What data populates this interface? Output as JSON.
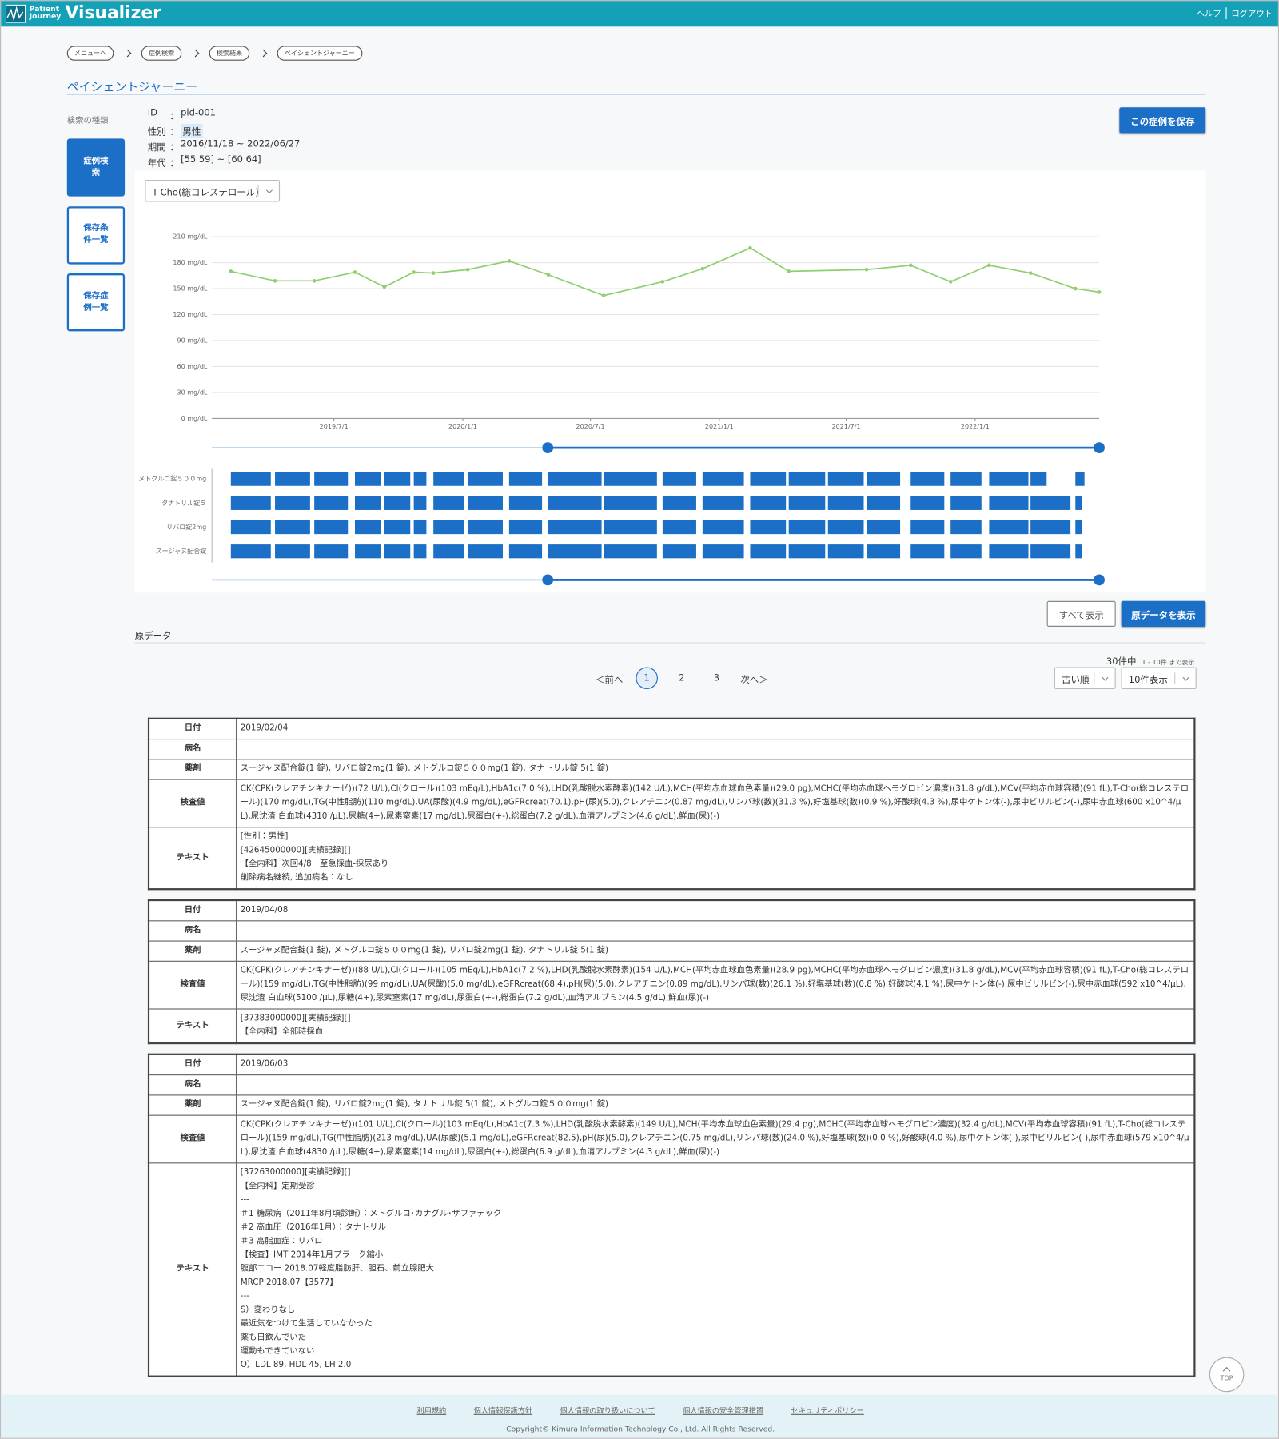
{
  "header": {
    "logo_line1": "Patient",
    "logo_line2": "Journey",
    "logo_main": "Visualizer",
    "links": [
      "ヘルプ",
      "ログアウト"
    ]
  },
  "breadcrumbs": [
    "メニューへ",
    "症例検索",
    "検索結果",
    "ペイシェントジャーニー"
  ],
  "page_title": "ペイシェントジャーニー",
  "sidebar": {
    "label": "検索の種類",
    "buttons": [
      "症例検索",
      "保存条件一覧",
      "保存症例一覧"
    ]
  },
  "patient": {
    "separator": "：",
    "fields": [
      {
        "label": "ID",
        "value": "pid-001"
      },
      {
        "label": "性別",
        "value": "男性"
      },
      {
        "label": "期間",
        "value": "2016/11/18 ~ 2022/06/27"
      },
      {
        "label": "年代",
        "value": "[55 59] ~ [60 64]"
      }
    ]
  },
  "save_button": "この症例を保存",
  "test_select": "T-Cho(総コレステロール)",
  "chart_data": [
    {
      "type": "line",
      "color": "#8fcf6f",
      "grid": true,
      "x": [
        "2019/02/04",
        "2019/04/08",
        "2019/06/03",
        "2019/07/31",
        "2019/09/11",
        "2019/10/23",
        "2019/11/20",
        "2020/01/08",
        "2020/03/07",
        "2020/05/02",
        "2020/07/20",
        "2020/10/12",
        "2020/12/08",
        "2021/02/14",
        "2021/04/10",
        "2021/07/30",
        "2021/10/01",
        "2021/11/27",
        "2022/01/21",
        "2022/03/21",
        "2022/05/24",
        "2022/06/27"
      ],
      "values": [
        170,
        159,
        159,
        169,
        152,
        169,
        168,
        172,
        182,
        166,
        142,
        158,
        173,
        197,
        170,
        172,
        177,
        158,
        177,
        168,
        150,
        146
      ],
      "xlim": [
        "2019/01/08",
        "2022/06/27"
      ],
      "xticks": [
        "2019/7/1",
        "2020/1/1",
        "2020/7/1",
        "2021/1/1",
        "2021/7/1",
        "2022/1/1"
      ],
      "ylim": [
        0,
        210
      ],
      "yticks": [
        {
          "value": 0,
          "label": "0 mg/dL"
        },
        {
          "value": 30,
          "label": "30 mg/dL"
        },
        {
          "value": 60,
          "label": "60 mg/dL"
        },
        {
          "value": 90,
          "label": "90 mg/dL"
        },
        {
          "value": 120,
          "label": "120 mg/dL"
        },
        {
          "value": 150,
          "label": "150 mg/dL"
        },
        {
          "value": 180,
          "label": "180 mg/dL"
        },
        {
          "value": 210,
          "label": "210 mg/dL"
        }
      ]
    },
    {
      "type": "gantt",
      "xlim": [
        "2019/01/08",
        "2022/06/27"
      ],
      "x": [
        "2019/02/04",
        "2019/04/08",
        "2019/06/03",
        "2019/07/31",
        "2019/09/11",
        "2019/10/23",
        "2019/11/20",
        "2020/01/08",
        "2020/03/07",
        "2020/05/02",
        "2020/07/20",
        "2020/10/12",
        "2020/12/08",
        "2021/02/14",
        "2021/04/10",
        "2021/06/05",
        "2021/07/30",
        "2021/10/01",
        "2021/11/27",
        "2022/01/21",
        "2022/03/21",
        "2022/05/24"
      ],
      "series": [
        {
          "name": "メトグルコ錠５００mg",
          "color": "#1c6fc6",
          "values": [
            57,
            50,
            48,
            37,
            37,
            18,
            44,
            50,
            47,
            76,
            76,
            48,
            59,
            51,
            52,
            51,
            48,
            48,
            44,
            56,
            23,
            13
          ]
        },
        {
          "name": "タナトリル錠５",
          "color": "#1c6fc6",
          "values": [
            57,
            50,
            48,
            37,
            37,
            18,
            44,
            50,
            47,
            76,
            76,
            48,
            59,
            51,
            52,
            51,
            48,
            48,
            44,
            56,
            57,
            10
          ]
        },
        {
          "name": "リバロ錠2mg",
          "color": "#1c6fc6",
          "values": [
            57,
            50,
            48,
            37,
            37,
            18,
            44,
            50,
            47,
            76,
            76,
            48,
            59,
            51,
            52,
            51,
            48,
            48,
            44,
            56,
            57,
            10
          ]
        },
        {
          "name": "スージャヌ配合錠",
          "color": "#1c6fc6",
          "values": [
            57,
            50,
            48,
            37,
            37,
            18,
            44,
            50,
            47,
            76,
            76,
            48,
            59,
            51,
            52,
            51,
            48,
            48,
            44,
            56,
            57,
            10
          ]
        }
      ]
    }
  ],
  "buttons": {
    "show_all": "すべて表示",
    "show_raw": "原データを表示"
  },
  "raw_data": {
    "title": "原データ",
    "count": "30件中",
    "range": "1 - 10件 まで表示",
    "prev": "＜前へ",
    "pages": [
      1,
      2,
      3
    ],
    "next": "次へ＞",
    "sort": "古い順",
    "per_page": "10件表示",
    "field_labels": {
      "date": "日付",
      "disease": "病名",
      "drugs": "薬剤",
      "labs": "検査値",
      "text": "テキスト"
    },
    "records": [
      {
        "date": "2019/02/04",
        "drugs": "スージャヌ配合錠(1 錠), リバロ錠2mg(1 錠), メトグルコ錠５００mg(1 錠), タナトリル錠 5(1 錠)",
        "labs": "CK(CPK(クレアチンキナーゼ))(72 U/L),Cl(クロール)(103 mEq/L),HbA1c(7.0 %),LHD(乳酸脱水素酵素)(142 U/L),MCH(平均赤血球血色素量)(29.0 pg),MCHC(平均赤血球ヘモグロビン濃度)(31.8 g/dL),MCV(平均赤血球容積)(91 fL),T-Cho(総コレステロール)(170 mg/dL),TG(中性脂肪)(110 mg/dL),UA(尿酸)(4.9 mg/dL),eGFRcreat(70.1),pH(尿)(5.0),クレアチニン(0.87 mg/dL),リンパ球(数)(31.3 %),好塩基球(数)(0.9 %),好酸球(4.3 %),尿中ケトン体(-),尿中ビリルビン(-),尿中赤血球(600 x10^4/μL),尿沈渣 白血球(4310 /μL),尿糖(4+),尿素窒素(17 mg/dL),尿蛋白(+-),総蛋白(7.2 g/dL),血清アルブミン(4.6 g/dL),鮮血(尿)(-)",
        "text": [
          "[性別：男性]",
          "[42645000000][実績記録][]",
          "【全内科】次回4/8　至急採血-採尿あり",
          "削除病名継続, 追加病名：なし"
        ]
      },
      {
        "date": "2019/04/08",
        "drugs": "スージャヌ配合錠(1 錠), メトグルコ錠５００mg(1 錠), リバロ錠2mg(1 錠), タナトリル錠 5(1 錠)",
        "labs": "CK(CPK(クレアチンキナーゼ))(88 U/L),Cl(クロール)(105 mEq/L),HbA1c(7.2 %),LHD(乳酸脱水素酵素)(154 U/L),MCH(平均赤血球血色素量)(28.9 pg),MCHC(平均赤血球ヘモグロビン濃度)(31.8 g/dL),MCV(平均赤血球容積)(91 fL),T-Cho(総コレステロール)(159 mg/dL),TG(中性脂肪)(99 mg/dL),UA(尿酸)(5.0 mg/dL),eGFRcreat(68.4),pH(尿)(5.0),クレアチニン(0.89 mg/dL),リンパ球(数)(26.1 %),好塩基球(数)(0.8 %),好酸球(4.1 %),尿中ケトン体(-),尿中ビリルビン(-),尿中赤血球(592 x10^4/μL),尿沈渣 白血球(5100 /μL),尿糖(4+),尿素窒素(17 mg/dL),尿蛋白(+-),総蛋白(7.2 g/dL),血清アルブミン(4.5 g/dL),鮮血(尿)(-)",
        "text": [
          "[37383000000][実績記録][]",
          "【全内科】全部時採血"
        ]
      },
      {
        "date": "2019/06/03",
        "drugs": "スージャヌ配合錠(1 錠), リバロ錠2mg(1 錠), タナトリル錠 5(1 錠), メトグルコ錠５００mg(1 錠)",
        "labs": "CK(CPK(クレアチンキナーゼ))(101 U/L),Cl(クロール)(103 mEq/L),HbA1c(7.3 %),LHD(乳酸脱水素酵素)(149 U/L),MCH(平均赤血球血色素量)(29.4 pg),MCHC(平均赤血球ヘモグロビン濃度)(32.4 g/dL),MCV(平均赤血球容積)(91 fL),T-Cho(総コレステロール)(159 mg/dL),TG(中性脂肪)(213 mg/dL),UA(尿酸)(5.1 mg/dL),eGFRcreat(82.5),pH(尿)(5.0),クレアチニン(0.75 mg/dL),リンパ球(数)(24.0 %),好塩基球(数)(0.0 %),好酸球(4.0 %),尿中ケトン体(-),尿中ビリルビン(-),尿中赤血球(579 x10^4/μL),尿沈渣 白血球(4830 /μL),尿糖(4+),尿素窒素(14 mg/dL),尿蛋白(+-),総蛋白(6.9 g/dL),血清アルブミン(4.3 g/dL),鮮血(尿)(-)",
        "text": [
          "[37263000000][実績記録][]",
          "【全内科】定期受診",
          "---",
          "＃1 糖尿病（2011年8月頃診断）：メトグルコ･カナグル･ザファテック",
          "＃2 高血圧（2016年1月）：タナトリル",
          "＃3 高脂血症：リバロ",
          "【検査】IMT 2014年1月プラーク縮小",
          "腹部エコー 2018.07軽度脂肪肝、胆石、前立腺肥大",
          "MRCP 2018.07【3577】",
          "---",
          "S）変わりなし",
          "最近気をつけて生活していなかった",
          "薬も日飲んでいた",
          "運動もできていない",
          "O）LDL 89, HDL 45, LH 2.0"
        ]
      }
    ]
  },
  "footer": {
    "links": [
      "利用規約",
      "個人情報保護方針",
      "個人情報の取り扱いについて",
      "個人情報の安全管理措置",
      "セキュリティポリシー"
    ],
    "copyright": "Copyright© Kimura Information Technology Co., Ltd. All Rights Reserved."
  },
  "top_button": "TOP"
}
